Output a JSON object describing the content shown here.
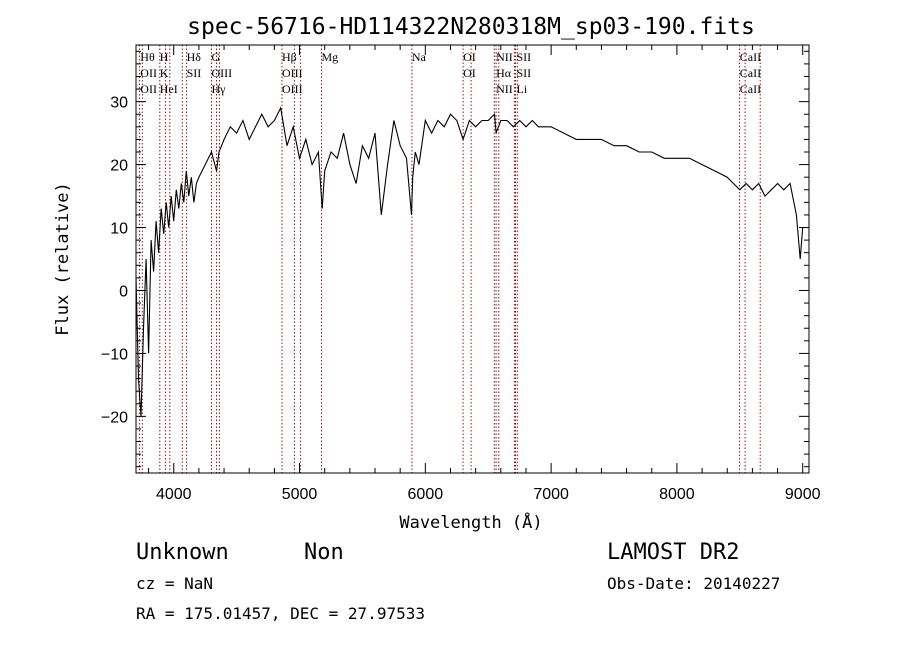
{
  "chart_data": {
    "type": "line",
    "title": "spec-56716-HD114322N280318M_sp03-190.fits",
    "xlabel": "Wavelength (Å)",
    "ylabel": "Flux (relative)",
    "xlim": [
      3700,
      9050
    ],
    "ylim": [
      -29,
      39
    ],
    "xticks": [
      4000,
      5000,
      6000,
      7000,
      8000,
      9000
    ],
    "yticks": [
      -20,
      -10,
      0,
      10,
      20,
      30
    ],
    "grid": false,
    "series": [
      {
        "x": [
          3700,
          3720,
          3740,
          3760,
          3780,
          3800,
          3820,
          3840,
          3860,
          3880,
          3900,
          3920,
          3940,
          3960,
          3980,
          4000,
          4020,
          4040,
          4060,
          4080,
          4100,
          4120,
          4140,
          4160,
          4180,
          4200,
          4250,
          4300,
          4340,
          4360,
          4400,
          4450,
          4500,
          4550,
          4600,
          4650,
          4700,
          4750,
          4800,
          4850,
          4900,
          4950,
          5000,
          5050,
          5100,
          5150,
          5180,
          5200,
          5250,
          5300,
          5350,
          5400,
          5450,
          5500,
          5550,
          5600,
          5650,
          5700,
          5750,
          5800,
          5850,
          5890,
          5900,
          5920,
          5950,
          6000,
          6050,
          6100,
          6150,
          6200,
          6250,
          6300,
          6350,
          6400,
          6450,
          6500,
          6550,
          6563,
          6600,
          6650,
          6700,
          6750,
          6800,
          6850,
          6900,
          6950,
          7000,
          7100,
          7200,
          7300,
          7400,
          7500,
          7600,
          7700,
          7800,
          7900,
          8000,
          8100,
          8200,
          8300,
          8400,
          8450,
          8500,
          8550,
          8600,
          8650,
          8700,
          8750,
          8800,
          8850,
          8900,
          8950,
          8980,
          9000
        ],
        "values": [
          2,
          -14,
          -20,
          -6,
          5,
          -10,
          8,
          3,
          11,
          6,
          13,
          9,
          14,
          10,
          15,
          11,
          16,
          13,
          17,
          14,
          19,
          15,
          18,
          14,
          17,
          18,
          20,
          22,
          19,
          22,
          24,
          26,
          25,
          27,
          24,
          26,
          28,
          26,
          27,
          29,
          23,
          26,
          21,
          24,
          20,
          22,
          13,
          19,
          22,
          21,
          25,
          20,
          17,
          23,
          21,
          25,
          12,
          20,
          27,
          23,
          21,
          12,
          18,
          22,
          20,
          27,
          25,
          27,
          26,
          28,
          27,
          24,
          27,
          26,
          27,
          27,
          28,
          25,
          27,
          27,
          26,
          27,
          26,
          27,
          26,
          26,
          26,
          25,
          24,
          24,
          24,
          23,
          23,
          22,
          22,
          21,
          21,
          21,
          20,
          19,
          18,
          17,
          16,
          17,
          16,
          17,
          15,
          16,
          17,
          16,
          17,
          12,
          5,
          10
        ]
      }
    ],
    "line_labels": [
      {
        "wave": 3734,
        "labels": [
          "Hθ",
          "OII",
          "OII"
        ]
      },
      {
        "wave": 3889,
        "labels": [
          "H",
          "K",
          "HeI"
        ]
      },
      {
        "wave": 4102,
        "labels": [
          "Hδ",
          "SII"
        ]
      },
      {
        "wave": 4300,
        "labels": [
          "G",
          "OIII",
          "Hγ"
        ]
      },
      {
        "wave": 4861,
        "labels": [
          "Hβ",
          "OIII",
          "OIII"
        ]
      },
      {
        "wave": 5175,
        "labels": [
          "Mg"
        ]
      },
      {
        "wave": 5893,
        "labels": [
          "Na"
        ]
      },
      {
        "wave": 6300,
        "labels": [
          "OI",
          "OI"
        ]
      },
      {
        "wave": 6563,
        "labels": [
          "NII",
          "Hα",
          "NII"
        ]
      },
      {
        "wave": 6725,
        "labels": [
          "SII",
          "SII",
          "Li"
        ]
      },
      {
        "wave": 8500,
        "labels": [
          "CaII",
          "CaII",
          "CaII"
        ]
      }
    ],
    "line_markers": [
      3727,
      3750,
      3889,
      3934,
      3969,
      4068,
      4102,
      4300,
      4340,
      4363,
      4861,
      4959,
      5007,
      5175,
      5893,
      6300,
      6364,
      6548,
      6563,
      6584,
      6708,
      6717,
      6731,
      8498,
      8542,
      8662
    ]
  },
  "info": {
    "object_class": "Unknown",
    "subclass": "Non",
    "survey": "LAMOST DR2",
    "cz": "cz = NaN",
    "obs_date": "Obs-Date: 20140227",
    "coords": "RA = 175.01457, DEC =  27.97533"
  },
  "colors": {
    "spectrum": "#000000",
    "marker": "#8b1a1a"
  }
}
